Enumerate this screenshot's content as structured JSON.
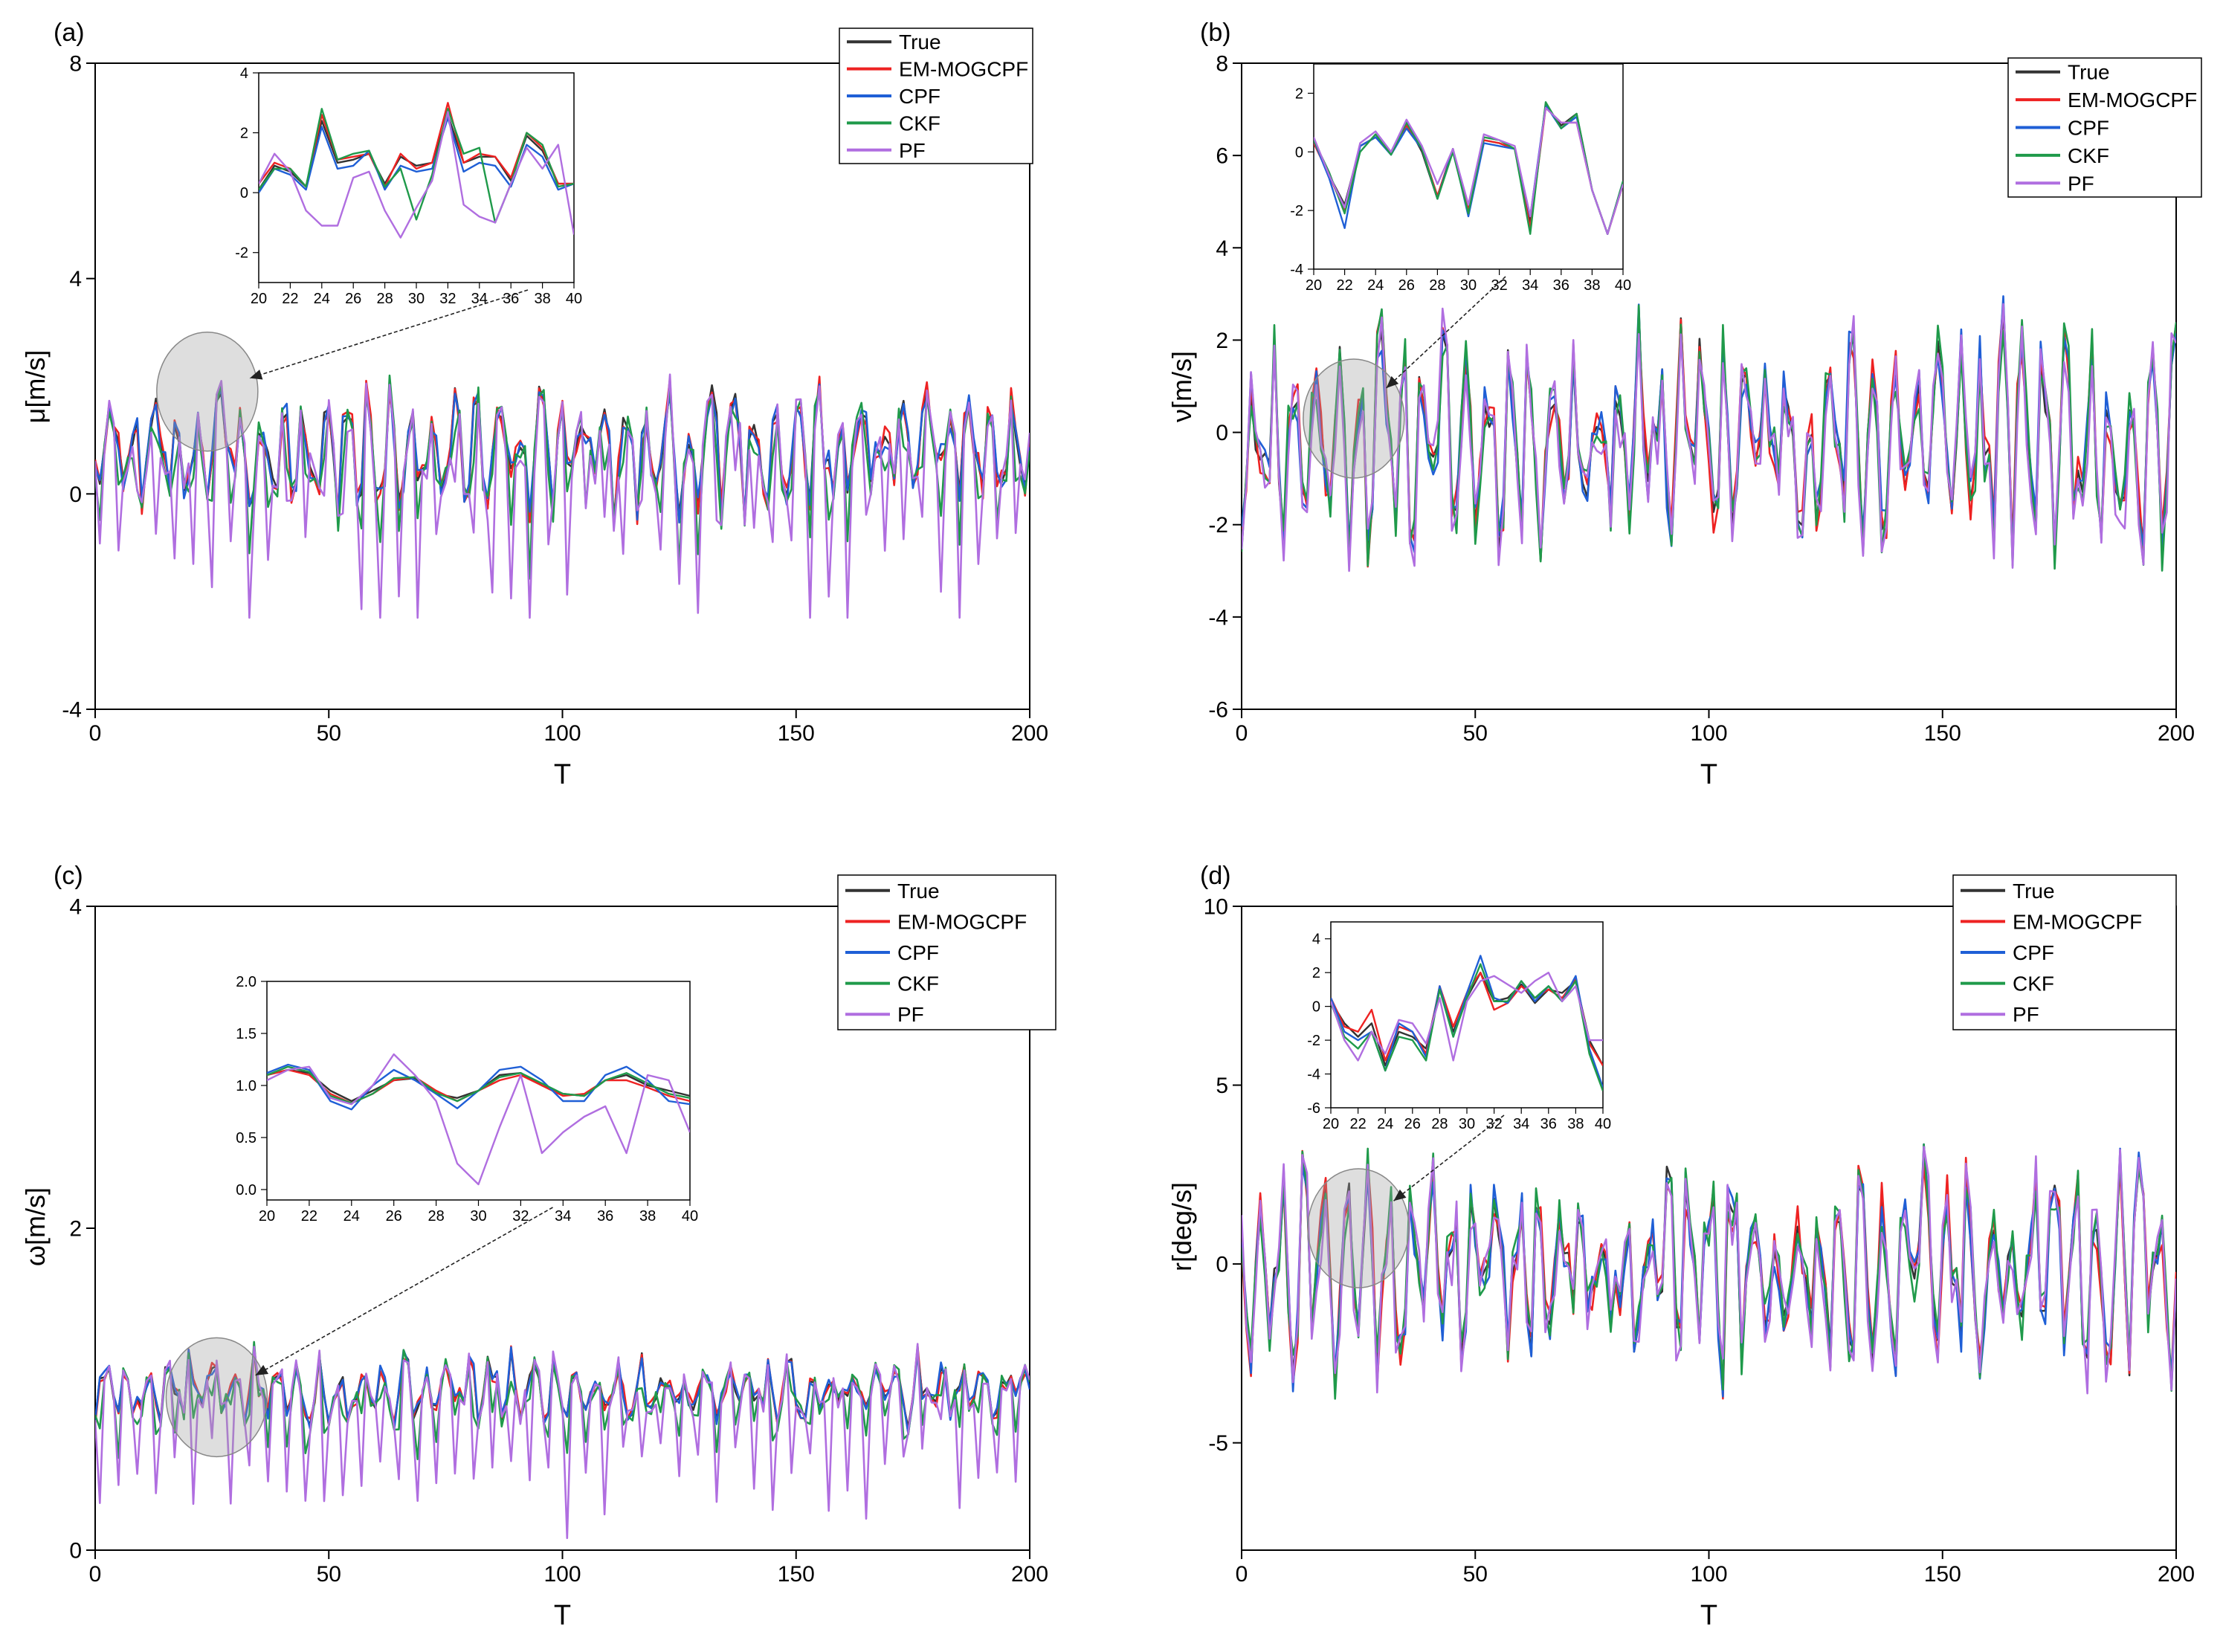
{
  "figure": {
    "panel_count": 4
  },
  "series_style": {
    "names": [
      "True",
      "EM-MOGCPF",
      "CPF",
      "CKF",
      "PF"
    ],
    "colors": {
      "True": "#333333",
      "EM-MOGCPF": "#ee2222",
      "CPF": "#1f5fd6",
      "CKF": "#1f9a4a",
      "PF": "#b06ee0"
    }
  },
  "chart_data": [
    {
      "type": "line",
      "panel_label": "(a)",
      "title": "",
      "xlabel": "T",
      "ylabel": "μ[m/s]",
      "xlim": [
        0,
        200
      ],
      "ylim": [
        -4,
        8
      ],
      "xticks": [
        0,
        50,
        100,
        150,
        200
      ],
      "yticks": [
        -4,
        0,
        4,
        8
      ],
      "legend": [
        "True",
        "EM-MOGCPF",
        "CPF",
        "CKF",
        "PF"
      ],
      "legend_position": "top-right",
      "gen": {
        "base": 0.8,
        "amp": 0.9,
        "pf_dip": 2.0,
        "seed": 3,
        "min": -2.3,
        "max": 3.9
      },
      "highlight_center": [
        24,
        1.9
      ],
      "inset": {
        "x": [
          20,
          21,
          22,
          23,
          24,
          25,
          26,
          27,
          28,
          29,
          30,
          31,
          32,
          33,
          34,
          35,
          36,
          37,
          38,
          39,
          40
        ],
        "xlim": [
          20,
          40
        ],
        "ylim": [
          -3,
          4
        ],
        "xticks": [
          20,
          22,
          24,
          26,
          28,
          30,
          32,
          34,
          36,
          38,
          40
        ],
        "yticks": [
          -2,
          0,
          2,
          4
        ],
        "series": [
          {
            "name": "True",
            "values": [
              0.1,
              0.9,
              0.7,
              0.2,
              2.4,
              1.0,
              1.1,
              1.3,
              0.3,
              1.2,
              0.9,
              1.0,
              2.6,
              1.0,
              1.2,
              1.2,
              0.4,
              1.9,
              1.4,
              0.3,
              0.3
            ]
          },
          {
            "name": "EM-MOGCPF",
            "values": [
              0.3,
              1.0,
              0.8,
              0.2,
              2.6,
              1.1,
              1.2,
              1.3,
              0.2,
              1.3,
              0.8,
              1.0,
              3.0,
              1.0,
              1.3,
              1.2,
              0.5,
              2.0,
              1.5,
              0.3,
              0.3
            ]
          },
          {
            "name": "CPF",
            "values": [
              0.0,
              0.8,
              0.6,
              0.1,
              2.2,
              0.8,
              0.9,
              1.4,
              0.1,
              0.9,
              0.7,
              0.8,
              2.5,
              0.7,
              1.0,
              0.9,
              0.2,
              1.6,
              1.2,
              0.1,
              0.3
            ]
          },
          {
            "name": "CKF",
            "values": [
              0.1,
              0.8,
              0.8,
              0.2,
              2.8,
              1.1,
              1.3,
              1.4,
              0.2,
              0.8,
              -0.9,
              0.6,
              2.8,
              1.3,
              1.5,
              -1.0,
              0.3,
              2.0,
              1.6,
              0.2,
              0.3
            ]
          },
          {
            "name": "PF",
            "values": [
              0.3,
              1.3,
              0.7,
              -0.6,
              -1.1,
              -1.1,
              0.5,
              0.7,
              -0.6,
              -1.5,
              -0.5,
              0.4,
              2.7,
              -0.4,
              -0.8,
              -1.0,
              0.3,
              1.5,
              0.8,
              1.6,
              -1.4
            ]
          }
        ]
      }
    },
    {
      "type": "line",
      "panel_label": "(b)",
      "title": "",
      "xlabel": "T",
      "ylabel": "ν[m/s]",
      "xlim": [
        0,
        200
      ],
      "ylim": [
        -6,
        8
      ],
      "xticks": [
        0,
        50,
        100,
        150,
        200
      ],
      "yticks": [
        -6,
        -4,
        -2,
        0,
        2,
        4,
        6,
        8
      ],
      "legend": [
        "True",
        "EM-MOGCPF",
        "CPF",
        "CKF",
        "PF"
      ],
      "legend_position": "top-right",
      "gen": {
        "base": -0.1,
        "amp": 1.9,
        "pf_dip": 0.2,
        "seed": 11,
        "min": -5.0,
        "max": 3.9
      },
      "highlight_center": [
        24,
        0.3
      ],
      "inset": {
        "x": [
          20,
          21,
          22,
          23,
          24,
          25,
          26,
          27,
          28,
          29,
          30,
          31,
          32,
          33,
          34,
          35,
          36,
          37,
          38,
          39,
          40
        ],
        "xlim": [
          20,
          40
        ],
        "ylim": [
          -4,
          3
        ],
        "xticks": [
          20,
          22,
          24,
          26,
          28,
          30,
          32,
          34,
          36,
          38,
          40
        ],
        "yticks": [
          -4,
          -2,
          0,
          2
        ],
        "series": [
          {
            "name": "True",
            "values": [
              0.4,
              -0.8,
              -1.8,
              0.2,
              0.5,
              0.0,
              1.0,
              0.0,
              -1.6,
              0.1,
              -2.0,
              0.4,
              0.3,
              0.1,
              -2.4,
              1.6,
              0.9,
              1.3,
              -1.3,
              -2.8,
              -1.1
            ]
          },
          {
            "name": "EM-MOGCPF",
            "values": [
              0.3,
              -0.8,
              -2.0,
              0.2,
              0.5,
              0.0,
              0.9,
              0.1,
              -1.5,
              0.1,
              -2.0,
              0.4,
              0.3,
              0.1,
              -2.6,
              1.5,
              1.0,
              1.0,
              -1.3,
              -2.8,
              -1.1
            ]
          },
          {
            "name": "CPF",
            "values": [
              0.4,
              -0.9,
              -2.6,
              0.2,
              0.5,
              -0.1,
              0.8,
              0.1,
              -1.6,
              0.1,
              -2.2,
              0.3,
              0.2,
              0.1,
              -2.2,
              1.6,
              0.8,
              1.2,
              -1.3,
              -2.8,
              -1.0
            ]
          },
          {
            "name": "CKF",
            "values": [
              0.4,
              -0.7,
              -2.1,
              0.0,
              0.6,
              -0.1,
              1.0,
              0.1,
              -1.6,
              0.0,
              -2.1,
              0.5,
              0.4,
              0.1,
              -2.8,
              1.7,
              0.8,
              1.3,
              -1.3,
              -2.8,
              -1.0
            ]
          },
          {
            "name": "PF",
            "values": [
              0.5,
              -0.8,
              -1.9,
              0.3,
              0.7,
              0.0,
              1.1,
              0.2,
              -1.1,
              0.1,
              -1.8,
              0.6,
              0.4,
              0.2,
              -2.2,
              1.5,
              1.0,
              1.0,
              -1.3,
              -2.8,
              -1.1
            ]
          }
        ]
      }
    },
    {
      "type": "line",
      "panel_label": "(c)",
      "title": "",
      "xlabel": "T",
      "ylabel": "ω[m/s]",
      "xlim": [
        0,
        200
      ],
      "ylim": [
        0,
        4
      ],
      "xticks": [
        0,
        50,
        100,
        150,
        200
      ],
      "yticks": [
        0,
        2,
        4
      ],
      "legend": [
        "True",
        "EM-MOGCPF",
        "CPF",
        "CKF",
        "PF"
      ],
      "legend_position": "top-right",
      "gen": {
        "base": 1.0,
        "amp": 0.17,
        "pf_dip": 0.55,
        "seed": 5,
        "min": 0.0,
        "max": 1.65
      },
      "highlight_center": [
        26,
        0.95
      ],
      "inset": {
        "x": [
          20,
          21,
          22,
          23,
          24,
          25,
          26,
          27,
          28,
          29,
          30,
          31,
          32,
          33,
          34,
          35,
          36,
          37,
          38,
          39,
          40
        ],
        "xlim": [
          20,
          40
        ],
        "ylim": [
          -0.1,
          2.0
        ],
        "xticks": [
          20,
          22,
          24,
          26,
          28,
          30,
          32,
          34,
          36,
          38,
          40
        ],
        "yticks": [
          0.0,
          0.5,
          1.0,
          1.5,
          2.0
        ],
        "series": [
          {
            "name": "True",
            "values": [
              1.1,
              1.15,
              1.12,
              0.95,
              0.85,
              0.95,
              1.05,
              1.07,
              0.92,
              0.88,
              0.95,
              1.1,
              1.12,
              1.0,
              0.92,
              0.9,
              1.05,
              1.1,
              1.0,
              0.95,
              0.9
            ]
          },
          {
            "name": "EM-MOGCPF",
            "values": [
              1.1,
              1.15,
              1.1,
              0.92,
              0.83,
              0.92,
              1.05,
              1.08,
              0.95,
              0.85,
              0.95,
              1.05,
              1.1,
              1.0,
              0.9,
              0.92,
              1.05,
              1.05,
              0.98,
              0.9,
              0.85
            ]
          },
          {
            "name": "CPF",
            "values": [
              1.12,
              1.2,
              1.15,
              0.85,
              0.77,
              1.0,
              1.15,
              1.05,
              0.92,
              0.78,
              0.95,
              1.15,
              1.18,
              1.05,
              0.85,
              0.85,
              1.1,
              1.18,
              1.05,
              0.85,
              0.82
            ]
          },
          {
            "name": "CKF",
            "values": [
              1.1,
              1.18,
              1.13,
              0.9,
              0.83,
              0.92,
              1.07,
              1.08,
              0.93,
              0.85,
              0.95,
              1.08,
              1.12,
              1.02,
              0.92,
              0.9,
              1.05,
              1.12,
              1.02,
              0.92,
              0.88
            ]
          },
          {
            "name": "PF",
            "values": [
              1.05,
              1.15,
              1.18,
              0.88,
              0.82,
              1.0,
              1.3,
              1.1,
              0.85,
              0.25,
              0.05,
              0.6,
              1.1,
              0.35,
              0.55,
              0.7,
              0.8,
              0.35,
              1.1,
              1.05,
              0.55
            ]
          }
        ]
      }
    },
    {
      "type": "line",
      "panel_label": "(d)",
      "title": "",
      "xlabel": "T",
      "ylabel": "r[deg/s]",
      "xlim": [
        0,
        200
      ],
      "ylim": [
        -8,
        10
      ],
      "xticks": [
        0,
        50,
        100,
        150,
        200
      ],
      "yticks": [
        -5,
        0,
        5,
        10
      ],
      "legend": [
        "True",
        "EM-MOGCPF",
        "CPF",
        "CKF",
        "PF"
      ],
      "legend_position": "top-right",
      "gen": {
        "base": 0.0,
        "amp": 2.3,
        "pf_dip": 0.3,
        "seed": 21,
        "min": -7.0,
        "max": 5.4
      },
      "highlight_center": [
        25,
        1.0
      ],
      "inset": {
        "x": [
          20,
          21,
          22,
          23,
          24,
          25,
          26,
          27,
          28,
          29,
          30,
          31,
          32,
          33,
          34,
          35,
          36,
          37,
          38,
          39,
          40
        ],
        "xlim": [
          20,
          40
        ],
        "ylim": [
          -6,
          5
        ],
        "xticks": [
          20,
          22,
          24,
          26,
          28,
          30,
          32,
          34,
          36,
          38,
          40
        ],
        "yticks": [
          -6,
          -4,
          -2,
          0,
          2,
          4
        ],
        "series": [
          {
            "name": "True",
            "values": [
              0.3,
              -1.0,
              -1.8,
              -1.0,
              -3.5,
              -1.5,
              -1.8,
              -2.5,
              1.0,
              -1.5,
              0.5,
              2.0,
              0.3,
              0.5,
              1.3,
              0.2,
              1.0,
              0.8,
              1.5,
              -2.0,
              -3.5
            ]
          },
          {
            "name": "EM-MOGCPF",
            "values": [
              0.5,
              -1.2,
              -1.5,
              -0.2,
              -3.2,
              -1.2,
              -1.5,
              -2.8,
              1.2,
              -1.2,
              0.8,
              2.0,
              -0.2,
              0.2,
              1.2,
              0.5,
              1.0,
              0.5,
              1.6,
              -2.2,
              -3.5
            ]
          },
          {
            "name": "CPF",
            "values": [
              0.5,
              -1.5,
              -2.0,
              -1.5,
              -3.8,
              -1.0,
              -1.5,
              -3.0,
              1.2,
              -1.8,
              0.8,
              3.0,
              0.5,
              0.2,
              1.5,
              0.3,
              1.2,
              0.3,
              1.8,
              -2.5,
              -4.8
            ]
          },
          {
            "name": "CKF",
            "values": [
              0.2,
              -1.8,
              -2.5,
              -1.5,
              -3.8,
              -1.8,
              -2.0,
              -3.2,
              1.0,
              -1.8,
              0.5,
              2.5,
              0.3,
              0.3,
              1.5,
              0.5,
              1.2,
              0.3,
              1.5,
              -2.8,
              -5.0
            ]
          },
          {
            "name": "PF",
            "values": [
              0.3,
              -2.0,
              -3.2,
              -1.5,
              -2.8,
              -0.8,
              -1.0,
              -2.2,
              0.5,
              -3.2,
              0.3,
              1.5,
              1.8,
              1.3,
              0.8,
              1.5,
              2.0,
              0.3,
              1.2,
              -2.0,
              -2.0
            ]
          }
        ]
      }
    }
  ]
}
